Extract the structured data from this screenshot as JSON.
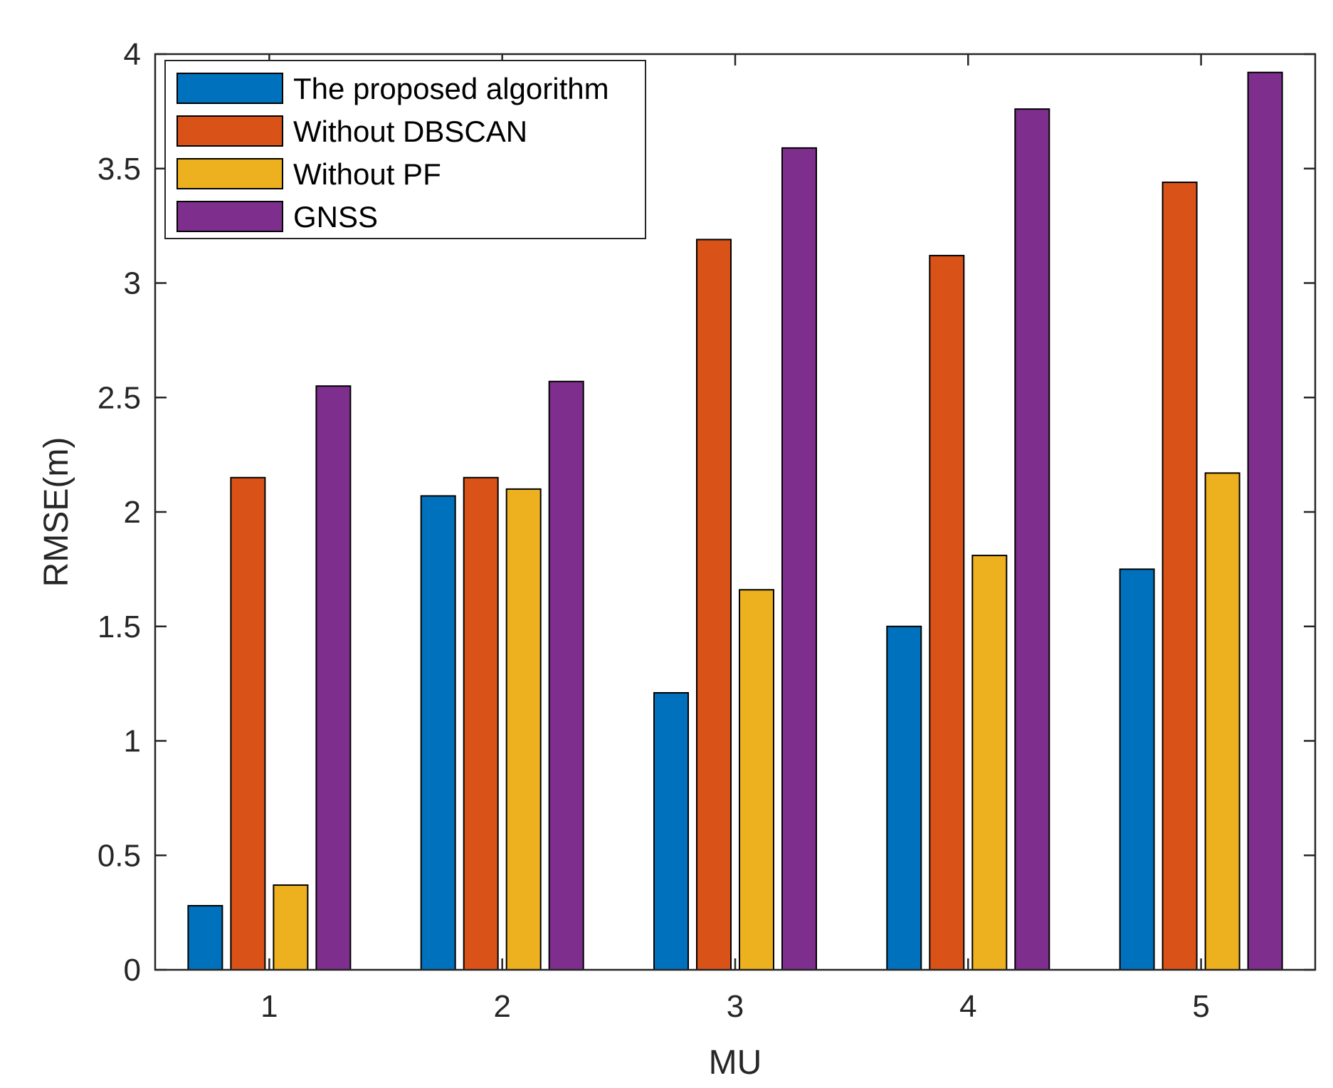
{
  "chart_data": {
    "type": "bar",
    "title": "",
    "xlabel": "MU",
    "ylabel": "RMSE(m)",
    "categories": [
      "1",
      "2",
      "3",
      "4",
      "5"
    ],
    "ylim": [
      0,
      4
    ],
    "yticks": [
      0,
      0.5,
      1,
      1.5,
      2,
      2.5,
      3,
      3.5,
      4
    ],
    "ytick_labels": [
      "0",
      "0.5",
      "1",
      "1.5",
      "2",
      "2.5",
      "3",
      "3.5",
      "4"
    ],
    "grid": false,
    "legend_position": "top-left",
    "series": [
      {
        "name": "The proposed algorithm",
        "color": "#0072BD",
        "values": [
          0.28,
          2.07,
          1.21,
          1.5,
          1.75
        ]
      },
      {
        "name": "Without DBSCAN",
        "color": "#D95319",
        "values": [
          2.15,
          2.15,
          3.19,
          3.12,
          3.44
        ]
      },
      {
        "name": "Without PF",
        "color": "#EDB120",
        "values": [
          0.37,
          2.1,
          1.66,
          1.81,
          2.17
        ]
      },
      {
        "name": "GNSS",
        "color": "#7E2F8E",
        "values": [
          2.55,
          2.57,
          3.59,
          3.76,
          3.92
        ]
      }
    ]
  }
}
